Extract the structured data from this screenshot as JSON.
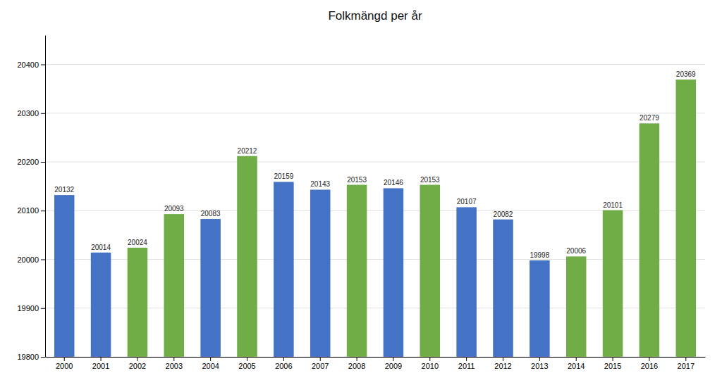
{
  "chart_data": {
    "type": "bar",
    "title": "Folkmängd per år",
    "categories": [
      "2000",
      "2001",
      "2002",
      "2003",
      "2004",
      "2005",
      "2006",
      "2007",
      "2008",
      "2009",
      "2010",
      "2011",
      "2012",
      "2013",
      "2014",
      "2015",
      "2016",
      "2017"
    ],
    "values": [
      20132,
      20014,
      20024,
      20093,
      20083,
      20212,
      20159,
      20143,
      20153,
      20146,
      20153,
      20107,
      20082,
      19998,
      20006,
      20101,
      20279,
      20369
    ],
    "colors": [
      "#4472C4",
      "#4472C4",
      "#70AD47",
      "#70AD47",
      "#4472C4",
      "#70AD47",
      "#4472C4",
      "#4472C4",
      "#70AD47",
      "#4472C4",
      "#70AD47",
      "#4472C4",
      "#4472C4",
      "#4472C4",
      "#70AD47",
      "#70AD47",
      "#70AD47",
      "#70AD47"
    ],
    "ylim": [
      19800,
      20460
    ],
    "yticks": [
      19800,
      19900,
      20000,
      20100,
      20200,
      20300,
      20400
    ],
    "grid": true,
    "data_labels": true
  }
}
